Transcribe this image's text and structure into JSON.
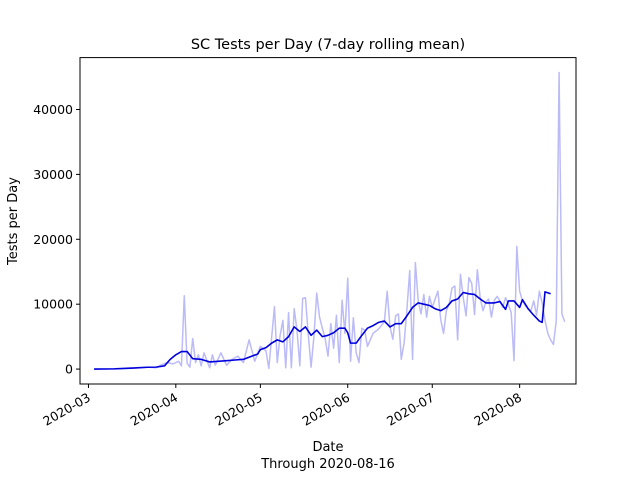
{
  "chart_data": {
    "type": "line",
    "title": "SC Tests per Day (7-day rolling mean)",
    "xlabel": "Date",
    "xlabel_sub": "Through 2020-08-16",
    "ylabel": "Tests per Day",
    "xlim": [
      "2020-02-27",
      "2020-08-21"
    ],
    "ylim": [
      -2300,
      48000
    ],
    "x_ticks": [
      "2020-03",
      "2020-04",
      "2020-05",
      "2020-06",
      "2020-07",
      "2020-08"
    ],
    "y_ticks": [
      0,
      10000,
      20000,
      30000,
      40000
    ],
    "y_tick_labels": [
      "0",
      "10000",
      "20000",
      "30000",
      "40000"
    ],
    "grid": false,
    "legend": "none",
    "series": [
      {
        "role": "daily",
        "color": "#bbbbf7",
        "points": [
          [
            "2020-03-03",
            0
          ],
          [
            "2020-03-10",
            50
          ],
          [
            "2020-03-17",
            200
          ],
          [
            "2020-03-22",
            300
          ],
          [
            "2020-03-25",
            200
          ],
          [
            "2020-03-27",
            700
          ],
          [
            "2020-03-29",
            1000
          ],
          [
            "2020-03-31",
            800
          ],
          [
            "2020-04-02",
            1200
          ],
          [
            "2020-04-03",
            500
          ],
          [
            "2020-04-04",
            11300
          ],
          [
            "2020-04-05",
            900
          ],
          [
            "2020-04-06",
            300
          ],
          [
            "2020-04-07",
            4700
          ],
          [
            "2020-04-08",
            1000
          ],
          [
            "2020-04-09",
            2200
          ],
          [
            "2020-04-10",
            500
          ],
          [
            "2020-04-11",
            2500
          ],
          [
            "2020-04-13",
            200
          ],
          [
            "2020-04-14",
            2200
          ],
          [
            "2020-04-15",
            600
          ],
          [
            "2020-04-17",
            2500
          ],
          [
            "2020-04-19",
            600
          ],
          [
            "2020-04-21",
            1500
          ],
          [
            "2020-04-23",
            2000
          ],
          [
            "2020-04-25",
            1000
          ],
          [
            "2020-04-27",
            4500
          ],
          [
            "2020-04-29",
            1200
          ],
          [
            "2020-05-01",
            3500
          ],
          [
            "2020-05-03",
            2800
          ],
          [
            "2020-05-04",
            100
          ],
          [
            "2020-05-06",
            9600
          ],
          [
            "2020-05-07",
            1000
          ],
          [
            "2020-05-08",
            5200
          ],
          [
            "2020-05-09",
            7500
          ],
          [
            "2020-05-10",
            200
          ],
          [
            "2020-05-11",
            8700
          ],
          [
            "2020-05-12",
            200
          ],
          [
            "2020-05-13",
            9300
          ],
          [
            "2020-05-14",
            6000
          ],
          [
            "2020-05-15",
            500
          ],
          [
            "2020-05-16",
            10900
          ],
          [
            "2020-05-17",
            11000
          ],
          [
            "2020-05-18",
            5300
          ],
          [
            "2020-05-19",
            300
          ],
          [
            "2020-05-20",
            5000
          ],
          [
            "2020-05-21",
            11700
          ],
          [
            "2020-05-22",
            8000
          ],
          [
            "2020-05-23",
            6300
          ],
          [
            "2020-05-24",
            4700
          ],
          [
            "2020-05-25",
            2000
          ],
          [
            "2020-05-26",
            7000
          ],
          [
            "2020-05-27",
            3200
          ],
          [
            "2020-05-28",
            8300
          ],
          [
            "2020-05-29",
            1000
          ],
          [
            "2020-05-30",
            10600
          ],
          [
            "2020-05-31",
            5500
          ],
          [
            "2020-06-01",
            14000
          ],
          [
            "2020-06-02",
            1200
          ],
          [
            "2020-06-03",
            7900
          ],
          [
            "2020-06-04",
            2500
          ],
          [
            "2020-06-05",
            1000
          ],
          [
            "2020-06-06",
            6300
          ],
          [
            "2020-06-07",
            6000
          ],
          [
            "2020-06-08",
            3500
          ],
          [
            "2020-06-10",
            5500
          ],
          [
            "2020-06-12",
            6200
          ],
          [
            "2020-06-14",
            7300
          ],
          [
            "2020-06-15",
            12000
          ],
          [
            "2020-06-16",
            6500
          ],
          [
            "2020-06-17",
            4600
          ],
          [
            "2020-06-18",
            8200
          ],
          [
            "2020-06-19",
            8500
          ],
          [
            "2020-06-20",
            1500
          ],
          [
            "2020-06-21",
            4000
          ],
          [
            "2020-06-22",
            9200
          ],
          [
            "2020-06-23",
            15200
          ],
          [
            "2020-06-24",
            1500
          ],
          [
            "2020-06-25",
            16400
          ],
          [
            "2020-06-26",
            10600
          ],
          [
            "2020-06-27",
            8500
          ],
          [
            "2020-06-28",
            11500
          ],
          [
            "2020-06-29",
            8000
          ],
          [
            "2020-06-30",
            11200
          ],
          [
            "2020-07-01",
            9500
          ],
          [
            "2020-07-02",
            10800
          ],
          [
            "2020-07-03",
            12000
          ],
          [
            "2020-07-04",
            7600
          ],
          [
            "2020-07-05",
            5500
          ],
          [
            "2020-07-06",
            9000
          ],
          [
            "2020-07-07",
            10000
          ],
          [
            "2020-07-08",
            12500
          ],
          [
            "2020-07-09",
            12800
          ],
          [
            "2020-07-10",
            4500
          ],
          [
            "2020-07-11",
            14600
          ],
          [
            "2020-07-12",
            11000
          ],
          [
            "2020-07-13",
            8200
          ],
          [
            "2020-07-14",
            14100
          ],
          [
            "2020-07-15",
            13200
          ],
          [
            "2020-07-16",
            8400
          ],
          [
            "2020-07-17",
            15300
          ],
          [
            "2020-07-18",
            11000
          ],
          [
            "2020-07-19",
            9000
          ],
          [
            "2020-07-20",
            10300
          ],
          [
            "2020-07-21",
            10800
          ],
          [
            "2020-07-22",
            8000
          ],
          [
            "2020-07-23",
            10600
          ],
          [
            "2020-07-24",
            11200
          ],
          [
            "2020-07-25",
            10500
          ],
          [
            "2020-07-26",
            9500
          ],
          [
            "2020-07-27",
            11000
          ],
          [
            "2020-07-28",
            10000
          ],
          [
            "2020-07-29",
            8700
          ],
          [
            "2020-07-30",
            1300
          ],
          [
            "2020-07-31",
            18900
          ],
          [
            "2020-08-01",
            12000
          ],
          [
            "2020-08-02",
            10500
          ],
          [
            "2020-08-03",
            9800
          ],
          [
            "2020-08-04",
            9300
          ],
          [
            "2020-08-05",
            9000
          ],
          [
            "2020-08-06",
            10500
          ],
          [
            "2020-08-07",
            8300
          ],
          [
            "2020-08-08",
            12000
          ],
          [
            "2020-08-09",
            10200
          ],
          [
            "2020-08-10",
            7500
          ],
          [
            "2020-08-11",
            5500
          ],
          [
            "2020-08-12",
            4500
          ],
          [
            "2020-08-13",
            3800
          ],
          [
            "2020-08-14",
            7500
          ],
          [
            "2020-08-15",
            45700
          ],
          [
            "2020-08-16",
            8500
          ],
          [
            "2020-08-17",
            7300
          ]
        ]
      },
      {
        "role": "rolling",
        "color": "#0000dd",
        "points": [
          [
            "2020-03-03",
            0
          ],
          [
            "2020-03-10",
            30
          ],
          [
            "2020-03-17",
            150
          ],
          [
            "2020-03-22",
            280
          ],
          [
            "2020-03-25",
            300
          ],
          [
            "2020-03-28",
            500
          ],
          [
            "2020-03-30",
            1500
          ],
          [
            "2020-04-01",
            2200
          ],
          [
            "2020-04-03",
            2700
          ],
          [
            "2020-04-05",
            2700
          ],
          [
            "2020-04-07",
            1600
          ],
          [
            "2020-04-10",
            1500
          ],
          [
            "2020-04-13",
            1100
          ],
          [
            "2020-04-16",
            1200
          ],
          [
            "2020-04-19",
            1300
          ],
          [
            "2020-04-22",
            1400
          ],
          [
            "2020-04-25",
            1500
          ],
          [
            "2020-04-28",
            2000
          ],
          [
            "2020-04-30",
            2300
          ],
          [
            "2020-05-01",
            3000
          ],
          [
            "2020-05-03",
            3300
          ],
          [
            "2020-05-05",
            4000
          ],
          [
            "2020-05-07",
            4500
          ],
          [
            "2020-05-09",
            4200
          ],
          [
            "2020-05-11",
            5000
          ],
          [
            "2020-05-13",
            6500
          ],
          [
            "2020-05-15",
            5800
          ],
          [
            "2020-05-17",
            6500
          ],
          [
            "2020-05-19",
            5200
          ],
          [
            "2020-05-21",
            6000
          ],
          [
            "2020-05-23",
            5000
          ],
          [
            "2020-05-25",
            5200
          ],
          [
            "2020-05-27",
            5600
          ],
          [
            "2020-05-29",
            6300
          ],
          [
            "2020-05-31",
            6300
          ],
          [
            "2020-06-01",
            5600
          ],
          [
            "2020-06-02",
            4000
          ],
          [
            "2020-06-04",
            4000
          ],
          [
            "2020-06-06",
            5200
          ],
          [
            "2020-06-08",
            6300
          ],
          [
            "2020-06-10",
            6700
          ],
          [
            "2020-06-12",
            7200
          ],
          [
            "2020-06-14",
            7400
          ],
          [
            "2020-06-16",
            6500
          ],
          [
            "2020-06-18",
            7000
          ],
          [
            "2020-06-20",
            7000
          ],
          [
            "2020-06-22",
            8200
          ],
          [
            "2020-06-24",
            9500
          ],
          [
            "2020-06-26",
            10200
          ],
          [
            "2020-06-28",
            10000
          ],
          [
            "2020-06-30",
            9800
          ],
          [
            "2020-07-02",
            9300
          ],
          [
            "2020-07-04",
            9000
          ],
          [
            "2020-07-06",
            9500
          ],
          [
            "2020-07-08",
            10500
          ],
          [
            "2020-07-10",
            10800
          ],
          [
            "2020-07-12",
            11800
          ],
          [
            "2020-07-14",
            11600
          ],
          [
            "2020-07-16",
            11500
          ],
          [
            "2020-07-18",
            10800
          ],
          [
            "2020-07-20",
            10200
          ],
          [
            "2020-07-23",
            10200
          ],
          [
            "2020-07-25",
            10400
          ],
          [
            "2020-07-27",
            9200
          ],
          [
            "2020-07-28",
            10500
          ],
          [
            "2020-07-30",
            10500
          ],
          [
            "2020-08-01",
            9500
          ],
          [
            "2020-08-02",
            10700
          ],
          [
            "2020-08-04",
            9300
          ],
          [
            "2020-08-06",
            8300
          ],
          [
            "2020-08-08",
            7400
          ],
          [
            "2020-08-09",
            7200
          ],
          [
            "2020-08-10",
            11900
          ],
          [
            "2020-08-12",
            11600
          ]
        ]
      }
    ]
  }
}
